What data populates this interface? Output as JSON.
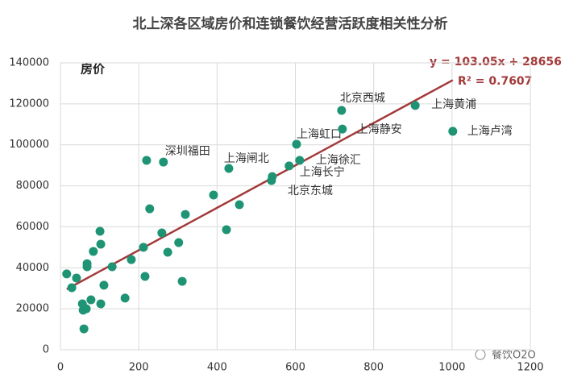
{
  "chart_data": {
    "type": "scatter",
    "title": "北上深各区域房价和连锁餐饮经营活跃度相关性分析",
    "y_label": "房价",
    "x": [
      16,
      29,
      41,
      56,
      58,
      60,
      66,
      68,
      68,
      78,
      84,
      101,
      103,
      103,
      111,
      132,
      165,
      181,
      212,
      216,
      220,
      228,
      259,
      263,
      274,
      302,
      311,
      319,
      391,
      424,
      430,
      457,
      539,
      541,
      584,
      603,
      611,
      718,
      720,
      906,
      1002
    ],
    "values": [
      37000,
      30300,
      35000,
      22400,
      19300,
      10200,
      20000,
      40500,
      42000,
      24400,
      48000,
      57800,
      51500,
      22400,
      31500,
      40500,
      25200,
      44000,
      50000,
      35800,
      92400,
      68800,
      57000,
      91600,
      47600,
      52300,
      33400,
      66000,
      75500,
      58600,
      88500,
      70800,
      82600,
      84500,
      89700,
      100300,
      92400,
      116800,
      107700,
      119200,
      106600
    ],
    "point_labels": [
      null,
      null,
      null,
      null,
      null,
      null,
      null,
      null,
      null,
      null,
      null,
      null,
      null,
      null,
      null,
      null,
      null,
      null,
      null,
      null,
      null,
      null,
      null,
      "深圳福田",
      null,
      null,
      null,
      null,
      null,
      null,
      "上海闸北",
      null,
      "北京东城",
      null,
      "上海长宁",
      "上海虹口",
      "上海徐汇",
      "北京西城",
      "上海静安",
      "上海黄浦",
      "上海卢湾"
    ],
    "color": "#1e9474",
    "trendline_color": "#a33a3a",
    "annotations": [
      "y = 103.05x + 28656",
      "R² = 0.7607"
    ],
    "watermark": "餐饮O2O",
    "xlim": [
      0,
      1200
    ],
    "xticks": [
      0,
      200,
      400,
      600,
      800,
      1000,
      1200
    ],
    "ylim": [
      0,
      140000
    ],
    "yticks": [
      0,
      20000,
      40000,
      60000,
      80000,
      100000,
      120000,
      140000
    ],
    "grid": true
  }
}
